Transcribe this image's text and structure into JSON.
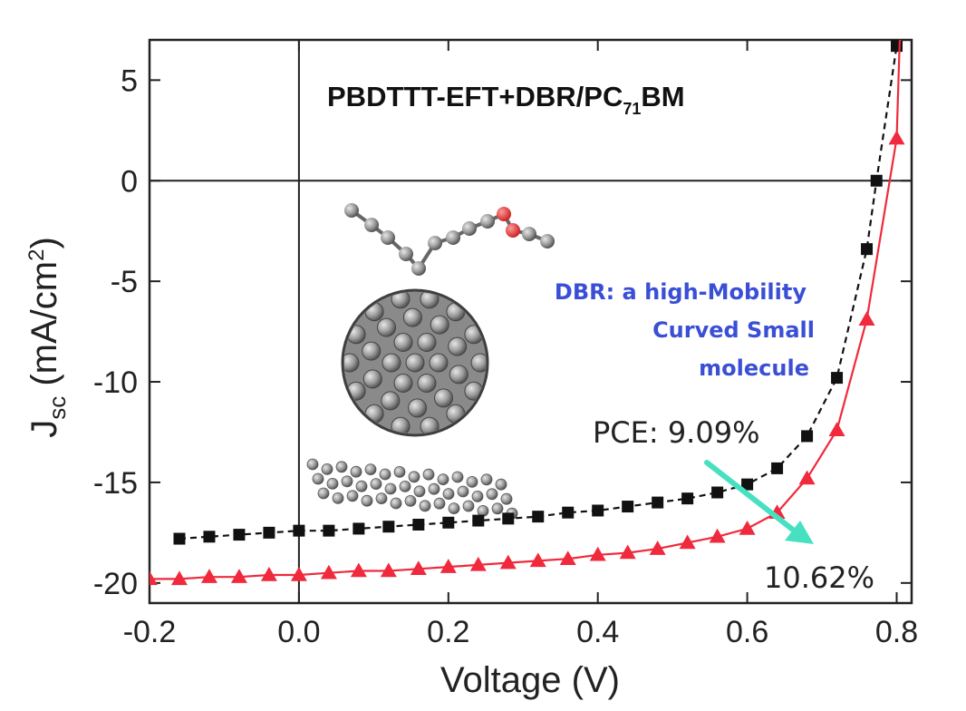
{
  "chart_data": {
    "type": "line",
    "title": "PBDTTT-EFT+DBR/PC71BM",
    "title_parts": {
      "main": "PBDTTT-EFT+DBR/PC",
      "subscript": "71",
      "tail": "BM"
    },
    "xlabel": "Voltage (V)",
    "ylabel": {
      "j": "J",
      "sub": "sc",
      "unit": " (mA/cm",
      "sup": "2",
      "close": ")"
    },
    "xlim": [
      -0.2,
      0.82
    ],
    "ylim": [
      -21,
      7
    ],
    "x_ticks": [
      -0.2,
      0.0,
      0.2,
      0.4,
      0.6,
      0.8
    ],
    "x_tick_labels": [
      "-0.2",
      "0.0",
      "0.2",
      "0.4",
      "0.6",
      "0.8"
    ],
    "y_ticks": [
      5,
      0,
      -5,
      -10,
      -15,
      -20
    ],
    "y_tick_labels": [
      "5",
      "0",
      "-5",
      "-10",
      "-15",
      "-20"
    ],
    "grid": false,
    "series": [
      {
        "color": "#111111",
        "marker": "square",
        "x": [
          -0.16,
          -0.12,
          -0.08,
          -0.04,
          0.0,
          0.04,
          0.08,
          0.12,
          0.16,
          0.2,
          0.24,
          0.28,
          0.32,
          0.36,
          0.4,
          0.44,
          0.48,
          0.52,
          0.56,
          0.6,
          0.64,
          0.68,
          0.72,
          0.76,
          0.773,
          0.8
        ],
        "y": [
          -17.8,
          -17.7,
          -17.6,
          -17.5,
          -17.4,
          -17.4,
          -17.3,
          -17.2,
          -17.1,
          -17.0,
          -16.9,
          -16.8,
          -16.7,
          -16.5,
          -16.4,
          -16.2,
          -16.0,
          -15.8,
          -15.5,
          -15.1,
          -14.3,
          -12.7,
          -9.8,
          -3.4,
          0.0,
          6.7
        ]
      },
      {
        "color": "#f02a3c",
        "marker": "triangle",
        "x": [
          -0.2,
          -0.16,
          -0.12,
          -0.08,
          -0.04,
          0.0,
          0.04,
          0.08,
          0.12,
          0.16,
          0.2,
          0.24,
          0.28,
          0.32,
          0.36,
          0.4,
          0.44,
          0.48,
          0.52,
          0.56,
          0.6,
          0.64,
          0.68,
          0.72,
          0.76,
          0.8
        ],
        "y": [
          -19.8,
          -19.8,
          -19.7,
          -19.7,
          -19.6,
          -19.6,
          -19.5,
          -19.4,
          -19.4,
          -19.3,
          -19.2,
          -19.1,
          -19.0,
          -18.9,
          -18.8,
          -18.6,
          -18.5,
          -18.3,
          -18.0,
          -17.7,
          -17.3,
          -16.5,
          -14.8,
          -12.4,
          -6.9,
          2.1
        ]
      }
    ],
    "curve_tails": [
      {
        "color": "#111111",
        "x": [
          0.8,
          0.82
        ],
        "y": [
          6.7,
          9.0
        ]
      },
      {
        "color": "#f02a3c",
        "x": [
          0.8,
          0.804,
          0.82
        ],
        "y": [
          2.1,
          6.9,
          9.0
        ]
      }
    ],
    "annotations": {
      "note_lines": [
        "DBR: a high-Mobility",
        "Curved Small",
        "molecule"
      ],
      "pce_black": "PCE: 9.09%",
      "pce_red": "10.62%",
      "arrow_color": "#47e0c0"
    },
    "inset_image": "fullerene-and-small-molecule-structure"
  }
}
